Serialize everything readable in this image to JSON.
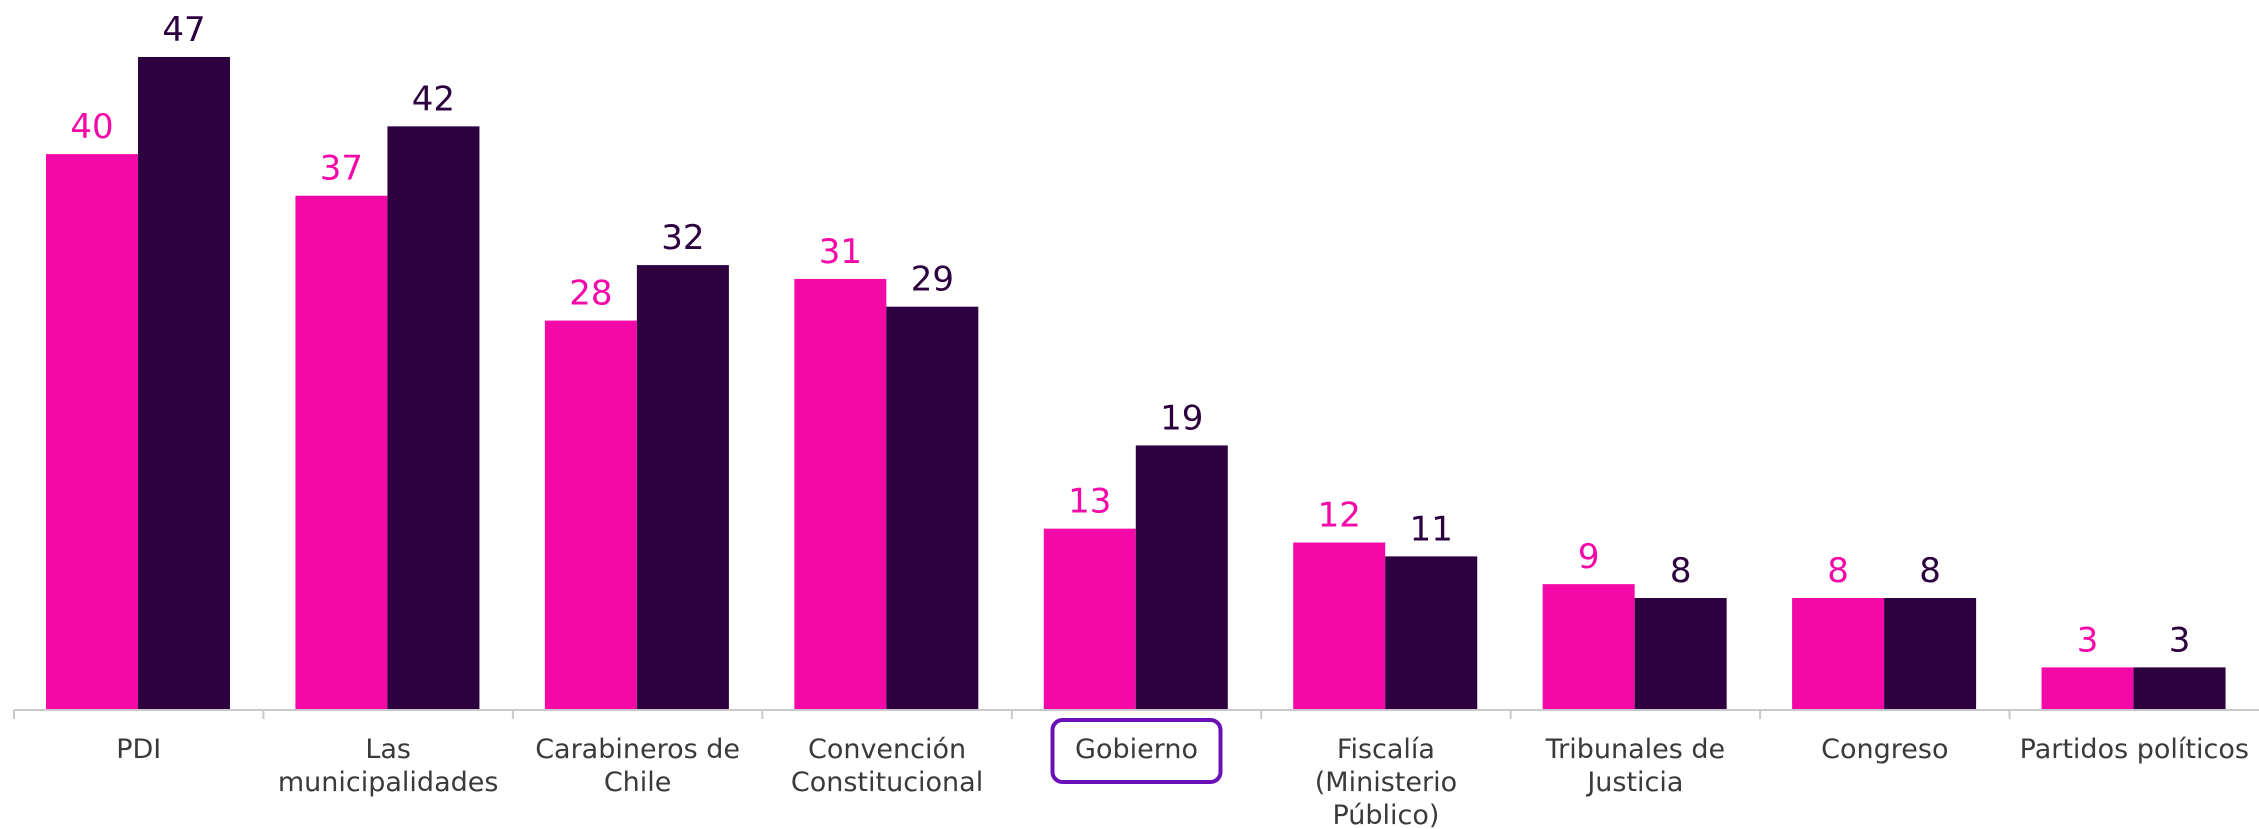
{
  "chart_data": {
    "type": "bar",
    "categories": [
      [
        "PDI"
      ],
      [
        "Las",
        "municipalidades"
      ],
      [
        "Carabineros de",
        "Chile"
      ],
      [
        "Convención",
        "Constitucional"
      ],
      [
        "Gobierno"
      ],
      [
        "Fiscalía",
        "(Ministerio",
        "Público)"
      ],
      [
        "Tribunales de",
        "Justicia"
      ],
      [
        "Congreso"
      ],
      [
        "Partidos políticos"
      ]
    ],
    "series": [
      {
        "color": "#f408a8",
        "values": [
          40,
          37,
          28,
          31,
          13,
          12,
          9,
          8,
          3
        ]
      },
      {
        "color": "#2d0040",
        "values": [
          47,
          42,
          32,
          29,
          19,
          11,
          8,
          8,
          3
        ]
      }
    ],
    "ylim": [
      0,
      50
    ],
    "highlighted_category_index": 4,
    "highlight_color": "#6a10b8",
    "grid": false,
    "legend": "none"
  }
}
